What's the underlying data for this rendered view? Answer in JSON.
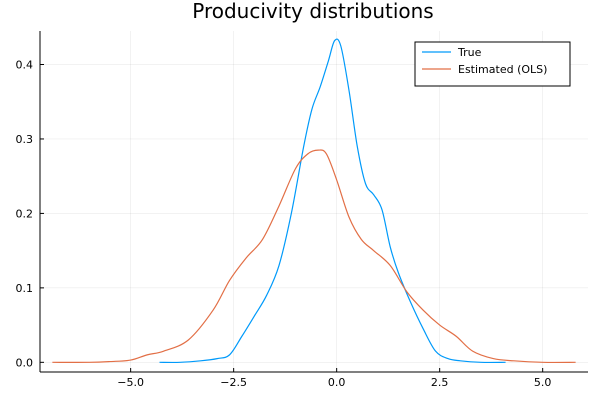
{
  "chart_data": {
    "type": "line",
    "title": "Producivity distributions",
    "xlabel": "",
    "ylabel": "",
    "xlim": [
      -7.2,
      6.1
    ],
    "ylim": [
      -0.013,
      0.445
    ],
    "xticks": [
      -5.0,
      -2.5,
      0.0,
      2.5,
      5.0
    ],
    "xtick_labels": [
      "−5.0",
      "−2.5",
      "0.0",
      "2.5",
      "5.0"
    ],
    "yticks": [
      0.0,
      0.1,
      0.2,
      0.3,
      0.4
    ],
    "ytick_labels": [
      "0.0",
      "0.1",
      "0.2",
      "0.3",
      "0.4"
    ],
    "grid": true,
    "legend_position": "top-right",
    "series": [
      {
        "name": "True",
        "color": "#009AFA",
        "x": [
          -4.3,
          -3.8,
          -3.3,
          -2.9,
          -2.6,
          -2.3,
          -2.0,
          -1.7,
          -1.4,
          -1.1,
          -0.8,
          -0.6,
          -0.4,
          -0.2,
          -0.05,
          0.1,
          0.3,
          0.5,
          0.7,
          0.9,
          1.1,
          1.3,
          1.5,
          1.8,
          2.1,
          2.4,
          2.7,
          3.0,
          3.5,
          4.1
        ],
        "y": [
          0.0,
          0.0,
          0.002,
          0.005,
          0.01,
          0.035,
          0.062,
          0.09,
          0.13,
          0.2,
          0.29,
          0.34,
          0.37,
          0.405,
          0.432,
          0.425,
          0.365,
          0.29,
          0.24,
          0.225,
          0.205,
          0.155,
          0.12,
          0.08,
          0.045,
          0.015,
          0.005,
          0.002,
          0.0,
          0.0
        ]
      },
      {
        "name": "Estimated (OLS)",
        "color": "#E26F46",
        "x": [
          -6.9,
          -6.0,
          -5.5,
          -5.0,
          -4.6,
          -4.2,
          -3.6,
          -3.0,
          -2.6,
          -2.2,
          -1.8,
          -1.4,
          -1.0,
          -0.7,
          -0.45,
          -0.25,
          0.0,
          0.3,
          0.6,
          0.9,
          1.3,
          1.7,
          2.1,
          2.5,
          2.9,
          3.3,
          3.8,
          4.3,
          5.0,
          5.8
        ],
        "y": [
          0.0,
          0.0,
          0.001,
          0.003,
          0.01,
          0.015,
          0.03,
          0.07,
          0.11,
          0.14,
          0.165,
          0.21,
          0.26,
          0.28,
          0.285,
          0.28,
          0.245,
          0.195,
          0.165,
          0.15,
          0.13,
          0.095,
          0.07,
          0.05,
          0.035,
          0.015,
          0.005,
          0.002,
          0.0,
          0.0
        ]
      }
    ]
  }
}
